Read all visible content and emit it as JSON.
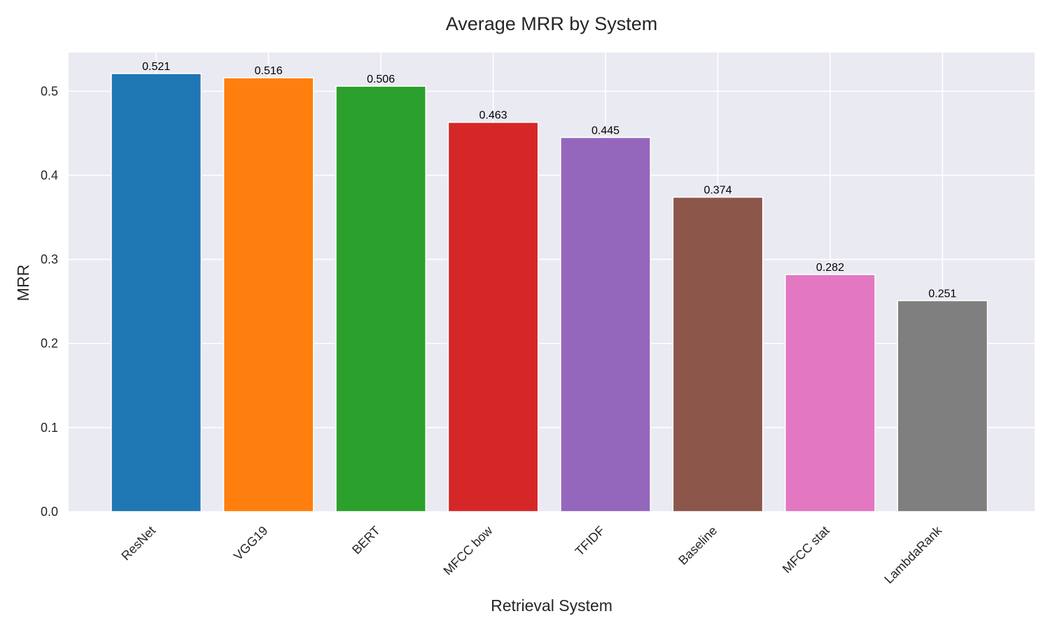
{
  "chart_data": {
    "type": "bar",
    "title": "Average MRR by System",
    "xlabel": "Retrieval System",
    "ylabel": "MRR",
    "categories": [
      "ResNet",
      "VGG19",
      "BERT",
      "MFCC bow",
      "TFIDF",
      "Baseline",
      "MFCC stat",
      "LambdaRank"
    ],
    "values": [
      0.521,
      0.516,
      0.506,
      0.463,
      0.445,
      0.374,
      0.282,
      0.251
    ],
    "data_labels": [
      "0.521",
      "0.516",
      "0.506",
      "0.463",
      "0.445",
      "0.374",
      "0.282",
      "0.251"
    ],
    "colors": [
      "#1f77b4",
      "#ff7f0e",
      "#2ca02c",
      "#d62728",
      "#9467bd",
      "#8c564b",
      "#e377c2",
      "#7f7f7f"
    ],
    "ylim": [
      0,
      0.546
    ],
    "yticks": [
      0.0,
      0.1,
      0.2,
      0.3,
      0.4,
      0.5
    ],
    "ytick_labels": [
      "0.0",
      "0.1",
      "0.2",
      "0.3",
      "0.4",
      "0.5"
    ],
    "grid": true,
    "plot_background": "#eaeaf2",
    "xtick_rotation": -45
  }
}
